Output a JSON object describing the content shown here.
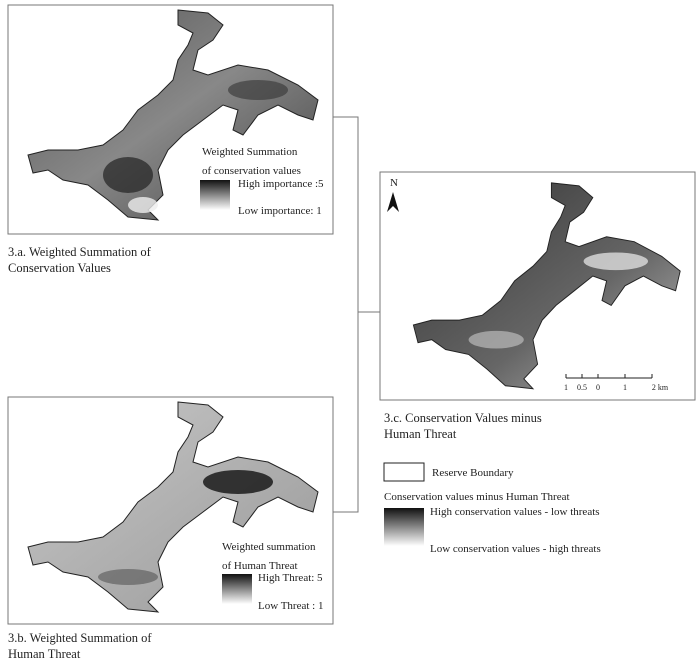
{
  "panels": [
    {
      "legend": {
        "title": [
          "Weighted Summation",
          "of conservation values"
        ],
        "high": "High importance :5",
        "low": "Low importance: 1"
      },
      "caption": [
        "3.a. Weighted Summation of",
        "Conservation Values"
      ]
    },
    {
      "legend": {
        "title": [
          "Weighted summation",
          "of Human Threat"
        ],
        "high": "High Threat: 5",
        "low": "Low Threat : 1"
      },
      "caption": [
        "3.b. Weighted Summation of",
        "Human Threat"
      ]
    }
  ],
  "panel_c": {
    "north": "N",
    "scale": [
      "1",
      "0.5",
      "0",
      "1",
      "2 km"
    ],
    "caption": [
      "3.c. Conservation Values minus",
      "Human Threat"
    ]
  },
  "legend": {
    "boundary": "Reserve Boundary",
    "title": "Conservation values minus Human Threat",
    "high": "High conservation values - low threats",
    "low": "Low conservation values - high threats"
  }
}
